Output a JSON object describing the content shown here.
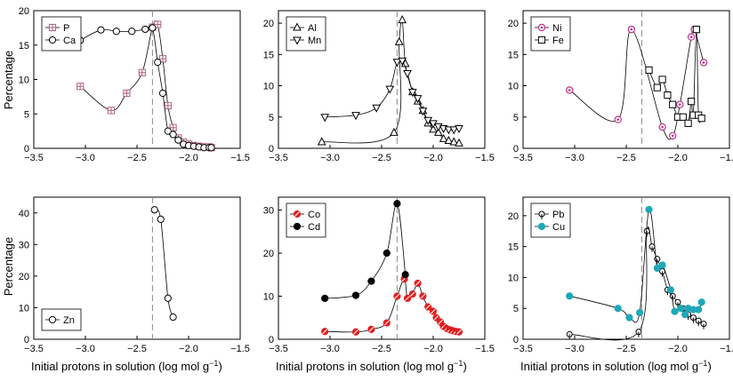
{
  "figure": {
    "ylabel": "Percentage",
    "xlabel_main": "Initial protons in solution (log mol g",
    "xlabel_sup": "−1",
    "xlabel_end": ")"
  },
  "chart_data": [
    {
      "type": "line",
      "panel": "top-left",
      "xlim": [
        -3.5,
        -1.5
      ],
      "ylim": [
        0,
        20
      ],
      "xticks": [
        -3.5,
        -3.0,
        -2.5,
        -2.0,
        -1.5
      ],
      "xtick_labels": [
        "−3.5",
        "−3.0",
        "−2.5",
        "−2.0",
        "−1.5"
      ],
      "yticks": [
        0,
        5,
        10,
        15,
        20
      ],
      "ytick_labels": [
        "0",
        "5",
        "10",
        "15",
        "20"
      ],
      "vline": -2.35,
      "legend_position": "top-left",
      "series": [
        {
          "name": "P",
          "marker": "square-plus",
          "color": "#b0607a",
          "x": [
            -3.05,
            -2.75,
            -2.6,
            -2.45,
            -2.35,
            -2.3,
            -2.25,
            -2.2,
            -2.15,
            -2.1,
            -2.05,
            -2.0,
            -1.95,
            -1.9,
            -1.85,
            -1.8,
            -1.78
          ],
          "y": [
            9.0,
            5.5,
            8.0,
            11.0,
            17.6,
            18.0,
            13.0,
            6.2,
            3.0,
            1.5,
            0.9,
            0.6,
            0.4,
            0.3,
            0.2,
            0.2,
            0.1
          ]
        },
        {
          "name": "Ca",
          "marker": "circle",
          "color": "#000000",
          "x": [
            -3.05,
            -2.85,
            -2.7,
            -2.55,
            -2.42,
            -2.35,
            -2.3,
            -2.25,
            -2.2,
            -2.15,
            -2.1,
            -2.05,
            -2.0,
            -1.95,
            -1.9,
            -1.85,
            -1.8,
            -1.78
          ],
          "y": [
            15.7,
            17.2,
            17.0,
            17.0,
            17.3,
            17.5,
            12.5,
            8.0,
            2.5,
            2.0,
            1.2,
            0.6,
            0.4,
            0.3,
            0.2,
            0.1,
            0.1,
            0.1
          ]
        }
      ]
    },
    {
      "type": "line",
      "panel": "top-middle",
      "xlim": [
        -3.5,
        -1.5
      ],
      "ylim": [
        0,
        22
      ],
      "xticks": [
        -3.5,
        -3.0,
        -2.5,
        -2.0,
        -1.5
      ],
      "xtick_labels": [
        "−3.5",
        "−3.0",
        "−2.5",
        "−2.0",
        "−1.5"
      ],
      "yticks": [
        0,
        5,
        10,
        15,
        20
      ],
      "ytick_labels": [
        "0",
        "5",
        "10",
        "15",
        "20"
      ],
      "vline": -2.35,
      "legend_position": "top-left",
      "series": [
        {
          "name": "Al",
          "marker": "triangle-up",
          "color": "#000000",
          "x": [
            -3.08,
            -2.38,
            -2.33,
            -2.3,
            -2.27,
            -2.2,
            -2.15,
            -2.1,
            -2.05,
            -2.0,
            -1.95,
            -1.9,
            -1.85,
            -1.8,
            -1.75
          ],
          "y": [
            1.0,
            2.5,
            17.0,
            20.5,
            13.5,
            9.0,
            7.5,
            6.0,
            4.0,
            3.0,
            2.5,
            1.5,
            1.2,
            1.0,
            0.8
          ]
        },
        {
          "name": "Mn",
          "marker": "triangle-down",
          "color": "#000000",
          "x": [
            -3.05,
            -2.75,
            -2.55,
            -2.42,
            -2.35,
            -2.3,
            -2.25,
            -2.2,
            -2.15,
            -2.1,
            -2.05,
            -2.0,
            -1.95,
            -1.9,
            -1.85,
            -1.8,
            -1.75
          ],
          "y": [
            5.0,
            5.3,
            6.5,
            9.5,
            13.8,
            14.0,
            12.0,
            9.0,
            8.0,
            6.0,
            4.5,
            4.0,
            3.5,
            3.2,
            3.0,
            3.0,
            3.2
          ]
        }
      ]
    },
    {
      "type": "line",
      "panel": "top-right",
      "xlim": [
        -3.5,
        -1.5
      ],
      "ylim": [
        0,
        22
      ],
      "xticks": [
        -3.5,
        -3.0,
        -2.5,
        -2.0,
        -1.5
      ],
      "xtick_labels": [
        "−3.5",
        "−3.0",
        "−2.5",
        "−2.0",
        "−1.5"
      ],
      "yticks": [
        0,
        5,
        10,
        15,
        20
      ],
      "ytick_labels": [
        "0",
        "5",
        "10",
        "15",
        "20"
      ],
      "vline": -2.35,
      "legend_position": "top-left",
      "series": [
        {
          "name": "Ni",
          "marker": "circle-dot",
          "color": "#c0308a",
          "x": [
            -3.05,
            -2.58,
            -2.45,
            -2.15,
            -2.05,
            -1.98,
            -1.87,
            -1.84,
            -1.75
          ],
          "y": [
            9.3,
            4.6,
            19.0,
            3.4,
            2.0,
            7.0,
            17.8,
            19.0,
            13.7
          ]
        },
        {
          "name": "Fe",
          "marker": "square",
          "color": "#000000",
          "x": [
            -2.28,
            -2.2,
            -2.15,
            -2.1,
            -2.05,
            -2.0,
            -1.95,
            -1.9,
            -1.87,
            -1.85,
            -1.82,
            -1.8,
            -1.77
          ],
          "y": [
            12.5,
            9.7,
            11.0,
            8.5,
            7.0,
            5.0,
            5.0,
            4.0,
            7.5,
            5.3,
            19.0,
            5.3,
            4.8
          ]
        }
      ]
    },
    {
      "type": "line",
      "panel": "bottom-left",
      "xlim": [
        -3.5,
        -1.5
      ],
      "ylim": [
        0,
        45
      ],
      "xticks": [
        -3.5,
        -3.0,
        -2.5,
        -2.0,
        -1.5
      ],
      "xtick_labels": [
        "−3.5",
        "−3.0",
        "−2.5",
        "−2.0",
        "−1.5"
      ],
      "yticks": [
        0,
        10,
        20,
        30,
        40
      ],
      "ytick_labels": [
        "0",
        "10",
        "20",
        "30",
        "40"
      ],
      "vline": -2.35,
      "legend_position": "bottom-left",
      "series": [
        {
          "name": "Zn",
          "marker": "circle",
          "color": "#000000",
          "x": [
            -2.33,
            -2.27,
            -2.2,
            -2.15
          ],
          "y": [
            41.0,
            38.0,
            13.0,
            7.0
          ]
        }
      ]
    },
    {
      "type": "line",
      "panel": "bottom-middle",
      "xlim": [
        -3.5,
        -1.5
      ],
      "ylim": [
        0,
        33
      ],
      "xticks": [
        -3.5,
        -3.0,
        -2.5,
        -2.0,
        -1.5
      ],
      "xtick_labels": [
        "−3.5",
        "−3.0",
        "−2.5",
        "−2.0",
        "−1.5"
      ],
      "yticks": [
        0,
        10,
        20,
        30
      ],
      "ytick_labels": [
        "0",
        "10",
        "20",
        "30"
      ],
      "vline": -2.35,
      "legend_position": "top-left",
      "series": [
        {
          "name": "Co",
          "marker": "circle-hatched",
          "color": "#e02020",
          "x": [
            -3.05,
            -2.75,
            -2.6,
            -2.45,
            -2.35,
            -2.28,
            -2.25,
            -2.2,
            -2.15,
            -2.1,
            -2.05,
            -2.0,
            -1.97,
            -1.93,
            -1.9,
            -1.87,
            -1.84,
            -1.81,
            -1.78,
            -1.75
          ],
          "y": [
            1.8,
            1.7,
            2.3,
            3.8,
            10.0,
            14.0,
            9.5,
            10.5,
            13.0,
            10.0,
            7.5,
            6.5,
            5.0,
            4.0,
            3.0,
            2.5,
            2.2,
            2.0,
            1.8,
            1.7
          ]
        },
        {
          "name": "Cd",
          "marker": "circle-filled",
          "color": "#000000",
          "x": [
            -3.05,
            -2.75,
            -2.6,
            -2.45,
            -2.35,
            -2.27
          ],
          "y": [
            9.5,
            10.2,
            13.5,
            20.0,
            31.5,
            15.0
          ]
        }
      ]
    },
    {
      "type": "line",
      "panel": "bottom-right",
      "xlim": [
        -3.5,
        -1.5
      ],
      "ylim": [
        0,
        23
      ],
      "xticks": [
        -3.5,
        -3.0,
        -2.5,
        -2.0,
        -1.5
      ],
      "xtick_labels": [
        "−3.5",
        "−3.0",
        "−2.5",
        "−2.0",
        "−1.5"
      ],
      "yticks": [
        0,
        5,
        10,
        15,
        20
      ],
      "ytick_labels": [
        "0",
        "5",
        "10",
        "15",
        "20"
      ],
      "vline": -2.35,
      "legend_position": "top-left",
      "series": [
        {
          "name": "Pb",
          "marker": "circle-tick",
          "color": "#000000",
          "x": [
            -3.05,
            -2.38,
            -2.3,
            -2.25,
            -2.2,
            -2.15,
            -2.1,
            -2.05,
            -2.0,
            -1.95,
            -1.9,
            -1.85,
            -1.8,
            -1.75
          ],
          "y": [
            0.8,
            1.2,
            17.5,
            15.0,
            13.0,
            11.0,
            8.0,
            7.0,
            6.0,
            5.0,
            4.0,
            3.5,
            3.0,
            2.5
          ]
        },
        {
          "name": "Cu",
          "marker": "circle-filled",
          "color": "#20a8b8",
          "x": [
            -3.05,
            -2.58,
            -2.47,
            -2.37,
            -2.28,
            -2.2,
            -2.15,
            -2.07,
            -2.03,
            -1.97,
            -1.93,
            -1.9,
            -1.85,
            -1.8,
            -1.77
          ],
          "y": [
            7.0,
            5.0,
            3.5,
            4.3,
            21.0,
            11.5,
            12.0,
            8.0,
            4.5,
            5.0,
            4.0,
            5.0,
            4.8,
            4.8,
            6.0
          ]
        }
      ]
    }
  ]
}
